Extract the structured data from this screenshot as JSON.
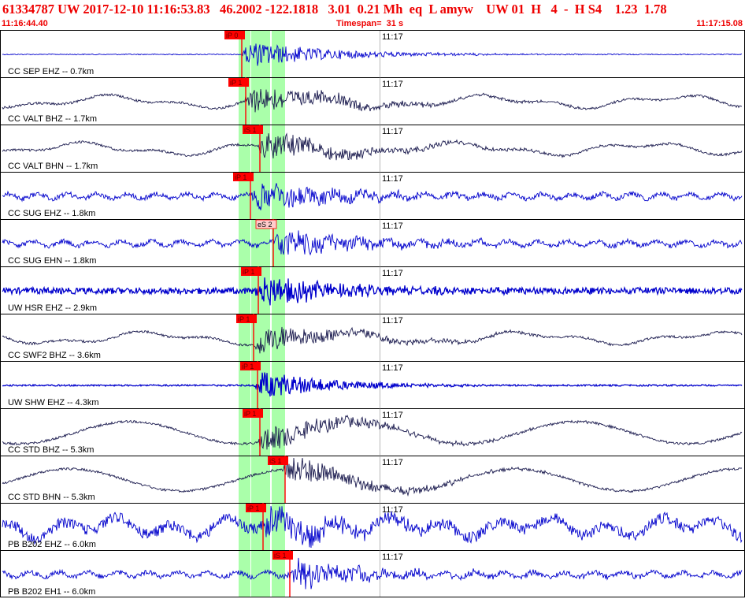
{
  "header": {
    "line1": "61334787 UW 2017-12-10 11:16:53.83   46.2002 -122.1818   3.01  0.21 Mh  eq  L amyw    UW 01  H   4  -  H S4    1.23  1.78",
    "start_time": "11:16:44.40",
    "timespan": "Timespan=  31 s",
    "end_time": "11:17:15.08"
  },
  "chart_data": {
    "type": "line",
    "minute_label": "11:17",
    "start_time": "11:16:44.40",
    "end_time": "11:17:15.08",
    "timespan_s": 31,
    "colors": {
      "trace_blue": "#0000cc",
      "trace_dark": "#1a1a4e",
      "pick_red": "#ff0000",
      "pick_pale": "#ffcccc",
      "window_green": "#aaffaa",
      "grid": "#000000"
    },
    "traces": [
      {
        "label": "CC SEP EHZ -- 0.7km",
        "pick": "iP 0",
        "color": "blue",
        "style": "quiet"
      },
      {
        "label": "CC VALT BHZ -- 1.7km",
        "pick": "iP 1",
        "color": "dark",
        "style": "swell"
      },
      {
        "label": "CC VALT BHN -- 1.7km",
        "pick": "iS 1",
        "color": "dark",
        "style": "swell"
      },
      {
        "label": "CC SUG EHZ -- 1.8km",
        "pick": "iP 1",
        "color": "blue",
        "style": "noisy"
      },
      {
        "label": "CC SUG EHN -- 1.8km",
        "pick": "eS 2",
        "color": "blue",
        "style": "noisy"
      },
      {
        "label": "UW HSR EHZ -- 2.9km",
        "pick": "iP 1",
        "color": "blue",
        "style": "thick"
      },
      {
        "label": "CC SWF2 BHZ -- 3.6km",
        "pick": "iP 1",
        "color": "dark",
        "style": "swell"
      },
      {
        "label": "UW SHW EHZ -- 4.3km",
        "pick": "iP 1",
        "color": "blue",
        "style": "burst"
      },
      {
        "label": "CC STD BHZ -- 5.3km",
        "pick": "iP 1",
        "color": "dark",
        "style": "bigswell"
      },
      {
        "label": "CC STD BHN -- 5.3km",
        "pick": "iS 1",
        "color": "dark",
        "style": "bigswell"
      },
      {
        "label": "PB B202 EHZ -- 6.0km",
        "pick": "iP 1",
        "color": "blue",
        "style": "wild"
      },
      {
        "label": "PB B202 EH1 -- 6.0km",
        "pick": "iS 1",
        "color": "blue",
        "style": "noisy"
      }
    ]
  }
}
